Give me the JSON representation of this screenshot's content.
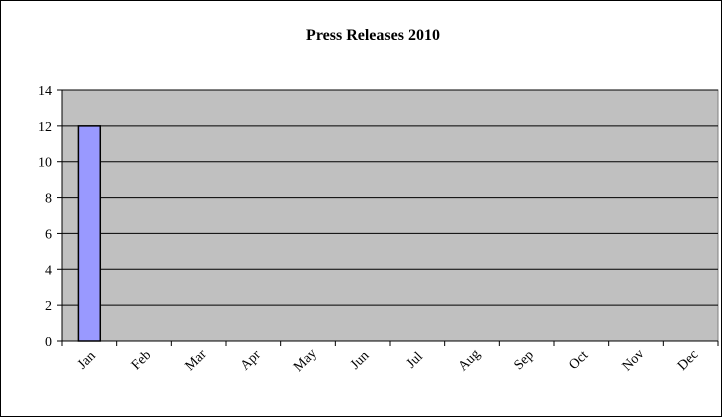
{
  "chart_data": {
    "type": "bar",
    "title": "Press Releases 2010",
    "xlabel": "",
    "ylabel": "",
    "categories": [
      "Jan",
      "Feb",
      "Mar",
      "Apr",
      "May",
      "Jun",
      "Jul",
      "Aug",
      "Sep",
      "Oct",
      "Nov",
      "Dec"
    ],
    "values": [
      12,
      0,
      0,
      0,
      0,
      0,
      0,
      0,
      0,
      0,
      0,
      0
    ],
    "ylim": [
      0,
      14
    ],
    "yticks": [
      0,
      2,
      4,
      6,
      8,
      10,
      12,
      14
    ],
    "grid": true,
    "legend": "none",
    "colors": {
      "plot_background": "#c0c0c0",
      "bar_fill": "#9999ff",
      "bar_stroke": "#000000",
      "gridline": "#000000"
    }
  }
}
